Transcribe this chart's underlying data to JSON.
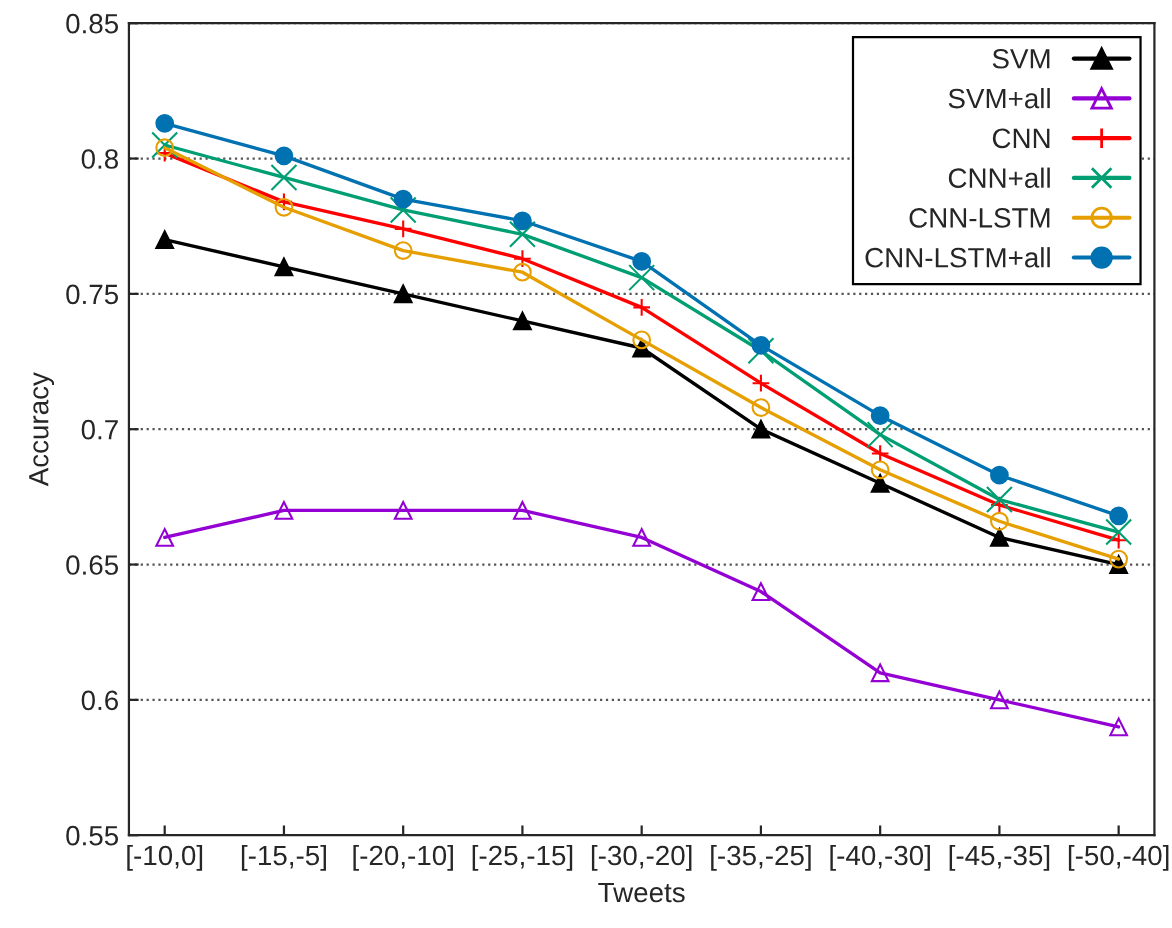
{
  "chart_data": {
    "type": "line",
    "xlabel": "Tweets",
    "ylabel": "Accuracy",
    "categories": [
      "[-10,0]",
      "[-15,-5]",
      "[-20,-10]",
      "[-25,-15]",
      "[-30,-20]",
      "[-35,-25]",
      "[-40,-30]",
      "[-45,-35]",
      "[-50,-40]"
    ],
    "series": [
      {
        "name": "SVM",
        "color": "#000000",
        "marker": "triangle",
        "values": [
          0.77,
          0.76,
          0.75,
          0.74,
          0.73,
          0.7,
          0.68,
          0.66,
          0.65
        ]
      },
      {
        "name": "SVM+all",
        "color": "#9400d3",
        "marker": "triangle_open",
        "values": [
          0.66,
          0.67,
          0.67,
          0.67,
          0.66,
          0.64,
          0.61,
          0.6,
          0.59
        ]
      },
      {
        "name": "CNN",
        "color": "#ff0000",
        "marker": "plus",
        "values": [
          0.802,
          0.784,
          0.774,
          0.763,
          0.745,
          0.717,
          0.691,
          0.672,
          0.659
        ]
      },
      {
        "name": "CNN+all",
        "color": "#009e73",
        "marker": "cross",
        "values": [
          0.805,
          0.793,
          0.781,
          0.772,
          0.756,
          0.729,
          0.698,
          0.674,
          0.662
        ]
      },
      {
        "name": "CNN-LSTM",
        "color": "#e69f00",
        "marker": "circle_open",
        "values": [
          0.804,
          0.782,
          0.766,
          0.758,
          0.733,
          0.708,
          0.685,
          0.666,
          0.652
        ]
      },
      {
        "name": "CNN-LSTM+all",
        "color": "#0072b2",
        "marker": "circle",
        "values": [
          0.813,
          0.801,
          0.785,
          0.777,
          0.762,
          0.731,
          0.705,
          0.683,
          0.668
        ]
      }
    ],
    "ylim": [
      0.55,
      0.85
    ],
    "yticks": [
      0.55,
      0.6,
      0.65,
      0.7,
      0.75,
      0.8,
      0.85
    ],
    "grid": "y",
    "legend": "top right",
    "line_style": "solid"
  }
}
